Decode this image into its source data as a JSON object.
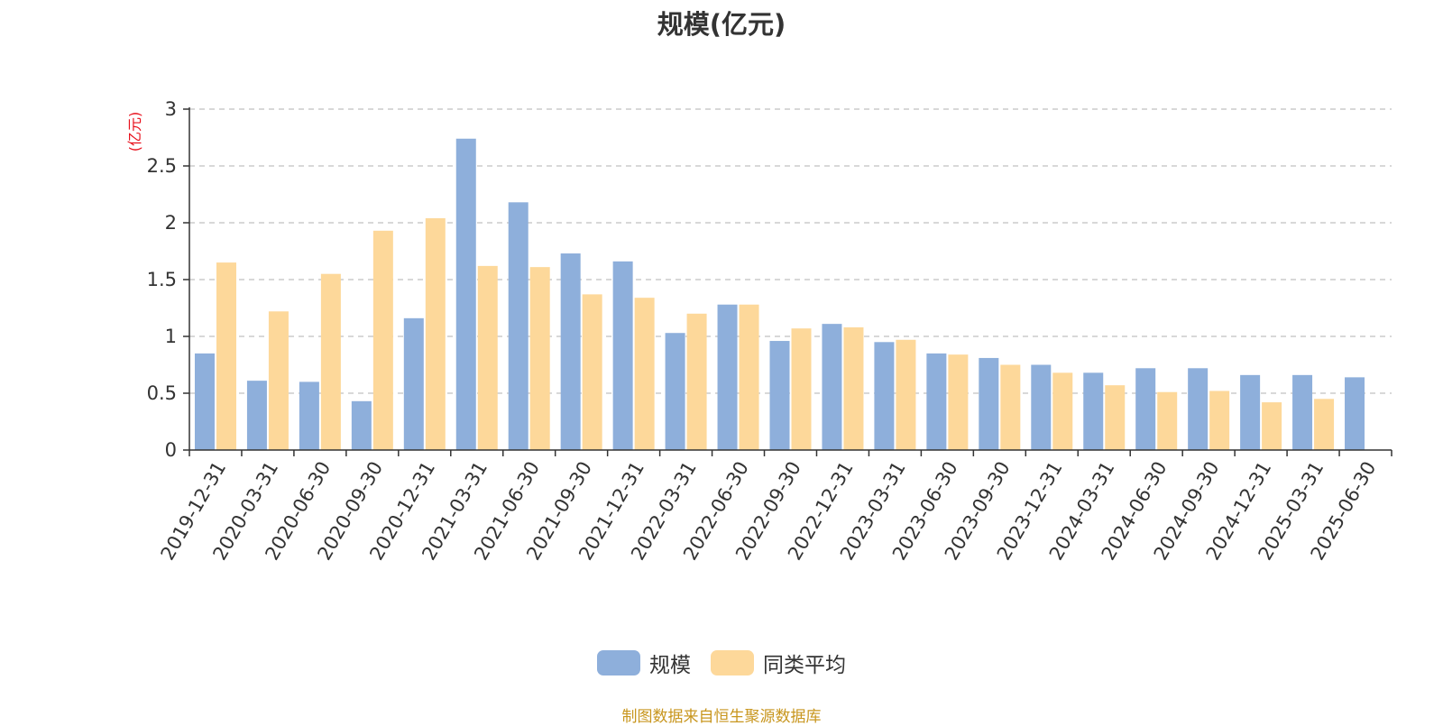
{
  "chart_data": {
    "type": "bar",
    "title": "规模(亿元)",
    "ylabel": "(亿元)",
    "ylim": [
      0,
      3
    ],
    "yticks": [
      "0",
      "0.5",
      "1",
      "1.5",
      "2",
      "2.5",
      "3"
    ],
    "grid": true,
    "legend_position": "bottom",
    "categories": [
      "2019-12-31",
      "2020-03-31",
      "2020-06-30",
      "2020-09-30",
      "2020-12-31",
      "2021-03-31",
      "2021-06-30",
      "2021-09-30",
      "2021-12-31",
      "2022-03-31",
      "2022-06-30",
      "2022-09-30",
      "2022-12-31",
      "2023-03-31",
      "2023-06-30",
      "2023-09-30",
      "2023-12-31",
      "2024-03-31",
      "2024-06-30",
      "2024-09-30",
      "2024-12-31",
      "2025-03-31",
      "2025-06-30"
    ],
    "series": [
      {
        "name": "规模",
        "color": "#8eafdb",
        "values": [
          0.85,
          0.61,
          0.6,
          0.43,
          1.16,
          2.74,
          2.18,
          1.73,
          1.66,
          1.03,
          1.28,
          0.96,
          1.11,
          0.95,
          0.85,
          0.81,
          0.75,
          0.68,
          0.72,
          0.72,
          0.66,
          0.66,
          0.64
        ]
      },
      {
        "name": "同类平均",
        "color": "#fdd89a",
        "values": [
          1.65,
          1.22,
          1.55,
          1.93,
          2.04,
          1.62,
          1.61,
          1.37,
          1.34,
          1.2,
          1.28,
          1.07,
          1.08,
          0.97,
          0.84,
          0.75,
          0.68,
          0.57,
          0.51,
          0.52,
          0.42,
          0.45,
          null
        ]
      }
    ]
  },
  "source_note": "制图数据来自恒生聚源数据库"
}
